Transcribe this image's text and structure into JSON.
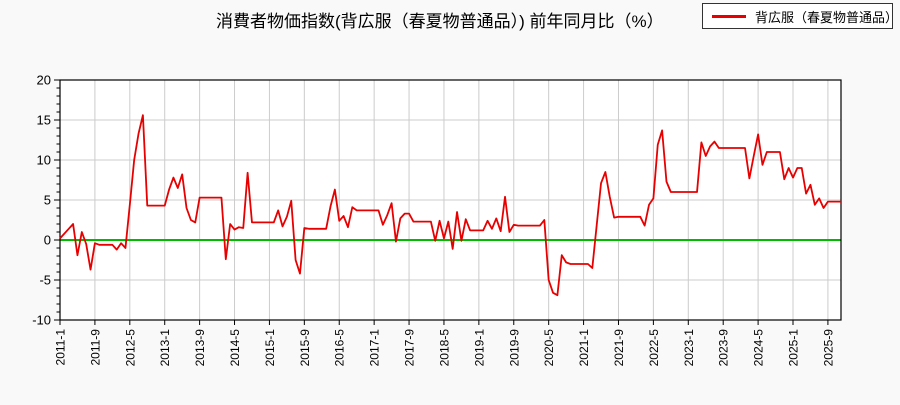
{
  "title": "消費者物価指数(背広服（春夏物普通品）) 前年同月比（%）",
  "legend": {
    "label": "背広服（春夏物普通品）",
    "swatch_color": "#e80000"
  },
  "chart_data": {
    "type": "line",
    "title": "消費者物価指数(背広服（春夏物普通品）) 前年同月比（%）",
    "xlabel": "",
    "ylabel": "",
    "x_start": "2011-1",
    "x_end": "2025-12",
    "x_tick_interval_months": 8,
    "x_tick_labels": [
      "2011-1",
      "2011-9",
      "2012-5",
      "2013-1",
      "2013-9",
      "2014-5",
      "2015-1",
      "2015-9",
      "2016-5",
      "2017-1",
      "2017-9",
      "2018-5",
      "2019-1",
      "2019-9",
      "2020-5",
      "2021-1",
      "2021-9",
      "2022-5",
      "2023-1",
      "2023-9",
      "2024-5",
      "2025-1",
      "2025-9"
    ],
    "ylim": [
      -10,
      20
    ],
    "y_ticks": [
      -10,
      -5,
      0,
      5,
      10,
      15,
      20
    ],
    "y_minor_tick_step": 1,
    "grid": true,
    "grid_color": "#cccccc",
    "zero_line_color": "#00bb00",
    "axis_color": "#000000",
    "plot_background": "#ffffff",
    "legend_position": "top-right",
    "series": [
      {
        "name": "背広服（春夏物普通品）",
        "color": "#e80000",
        "values": [
          0.2,
          0.8,
          1.4,
          2.0,
          -1.9,
          1.0,
          -0.5,
          -3.7,
          -0.4,
          -0.6,
          -0.6,
          -0.6,
          -0.6,
          -1.2,
          -0.4,
          -1.0,
          4.4,
          10.0,
          13.3,
          15.6,
          4.3,
          4.3,
          4.3,
          4.3,
          4.3,
          6.3,
          7.8,
          6.5,
          8.2,
          4.0,
          2.5,
          2.2,
          5.3,
          5.3,
          5.3,
          5.3,
          5.3,
          5.3,
          -2.4,
          2.0,
          1.3,
          1.6,
          1.5,
          8.4,
          2.2,
          2.2,
          2.2,
          2.2,
          2.2,
          2.2,
          3.7,
          1.7,
          2.9,
          4.9,
          -2.5,
          -4.2,
          1.5,
          1.4,
          1.4,
          1.4,
          1.4,
          1.4,
          4.2,
          6.3,
          2.4,
          3.0,
          1.6,
          4.1,
          3.7,
          3.7,
          3.7,
          3.7,
          3.7,
          3.7,
          1.9,
          3.1,
          4.6,
          -0.2,
          2.7,
          3.3,
          3.3,
          2.3,
          2.3,
          2.3,
          2.3,
          2.3,
          -0.1,
          2.4,
          0.2,
          2.3,
          -1.1,
          3.5,
          -0.1,
          2.6,
          1.2,
          1.2,
          1.2,
          1.2,
          2.4,
          1.4,
          2.7,
          1.1,
          5.4,
          1.0,
          1.9,
          1.8,
          1.8,
          1.8,
          1.8,
          1.8,
          1.8,
          2.5,
          -5.0,
          -6.6,
          -6.9,
          -1.9,
          -2.8,
          -3.0,
          -3.0,
          -3.0,
          -3.0,
          -3.0,
          -3.5,
          1.8,
          7.1,
          8.5,
          5.4,
          2.8,
          2.9,
          2.9,
          2.9,
          2.9,
          2.9,
          2.9,
          1.8,
          4.4,
          5.2,
          11.9,
          13.7,
          7.3,
          6.0,
          6.0,
          6.0,
          6.0,
          6.0,
          6.0,
          6.0,
          12.2,
          10.5,
          11.7,
          12.3,
          11.5,
          11.5,
          11.5,
          11.5,
          11.5,
          11.5,
          11.5,
          7.7,
          10.5,
          13.2,
          9.4,
          11.0,
          11.0,
          11.0,
          11.0,
          7.6,
          9.0,
          7.8,
          9.0,
          9.0,
          5.8,
          6.9,
          4.4,
          5.2,
          4.0,
          4.8,
          4.8,
          4.8,
          4.8
        ]
      }
    ]
  }
}
